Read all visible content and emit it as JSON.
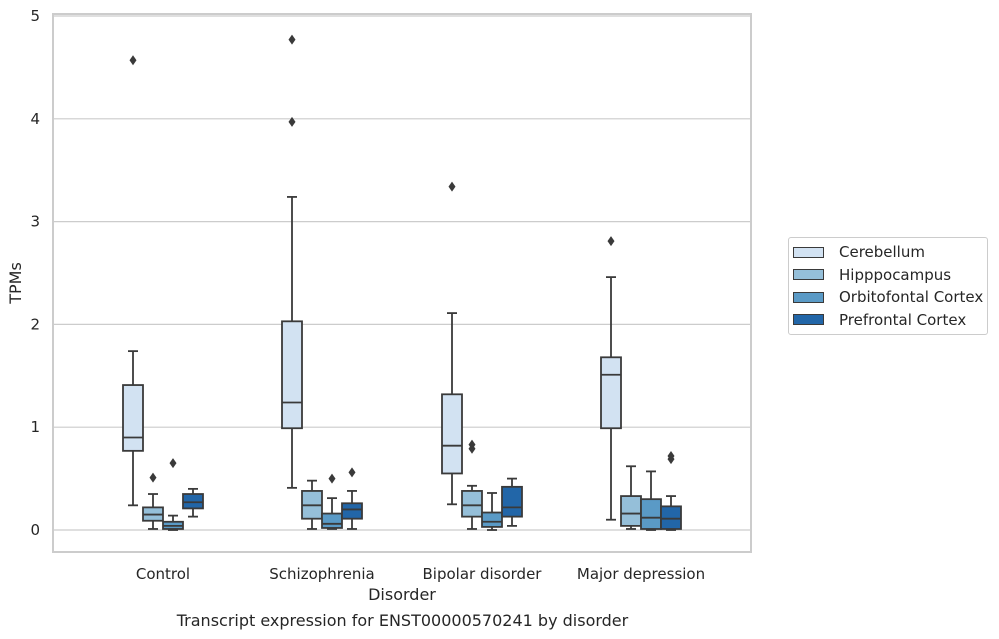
{
  "chart_data": {
    "type": "box",
    "xlabel": "Disorder",
    "ylabel": "TPMs",
    "caption": "Transcript expression for ENST00000570241 by disorder",
    "categories": [
      "Control",
      "Schizophrenia",
      "Bipolar disorder",
      "Major depression"
    ],
    "ylim": [
      -0.22,
      5.0
    ],
    "yticks": [
      0,
      1,
      2,
      3,
      4,
      5
    ],
    "grid": "horizontal",
    "legend_position": "right",
    "series": [
      {
        "name": "Cerebellum",
        "color": "#d2e2f2",
        "boxes": [
          {
            "whislo": 0.24,
            "q1": 0.77,
            "med": 0.9,
            "q3": 1.41,
            "whishi": 1.74,
            "fliers": [
              4.57
            ]
          },
          {
            "whislo": 0.41,
            "q1": 0.99,
            "med": 1.24,
            "q3": 2.03,
            "whishi": 3.24,
            "fliers": [
              3.97,
              4.77
            ]
          },
          {
            "whislo": 0.25,
            "q1": 0.55,
            "med": 0.82,
            "q3": 1.32,
            "whishi": 2.11,
            "fliers": [
              3.34
            ]
          },
          {
            "whislo": 0.1,
            "q1": 0.99,
            "med": 1.51,
            "q3": 1.68,
            "whishi": 2.46,
            "fliers": [
              2.81
            ]
          }
        ]
      },
      {
        "name": "Hipppocampus",
        "color": "#95bfd9",
        "boxes": [
          {
            "whislo": 0.01,
            "q1": 0.09,
            "med": 0.15,
            "q3": 0.22,
            "whishi": 0.35,
            "fliers": [
              0.51
            ]
          },
          {
            "whislo": 0.01,
            "q1": 0.11,
            "med": 0.24,
            "q3": 0.38,
            "whishi": 0.48,
            "fliers": []
          },
          {
            "whislo": 0.01,
            "q1": 0.13,
            "med": 0.24,
            "q3": 0.38,
            "whishi": 0.43,
            "fliers": [
              0.79,
              0.83
            ]
          },
          {
            "whislo": 0.01,
            "q1": 0.04,
            "med": 0.16,
            "q3": 0.33,
            "whishi": 0.62,
            "fliers": []
          }
        ]
      },
      {
        "name": "Orbitofontal Cortex",
        "color": "#5a9ac6",
        "boxes": [
          {
            "whislo": 0.0,
            "q1": 0.01,
            "med": 0.04,
            "q3": 0.08,
            "whishi": 0.14,
            "fliers": [
              0.65
            ]
          },
          {
            "whislo": 0.01,
            "q1": 0.02,
            "med": 0.06,
            "q3": 0.16,
            "whishi": 0.31,
            "fliers": [
              0.5
            ]
          },
          {
            "whislo": 0.0,
            "q1": 0.03,
            "med": 0.08,
            "q3": 0.17,
            "whishi": 0.36,
            "fliers": []
          },
          {
            "whislo": 0.0,
            "q1": 0.01,
            "med": 0.12,
            "q3": 0.3,
            "whishi": 0.57,
            "fliers": []
          }
        ]
      },
      {
        "name": "Prefrontal Cortex",
        "color": "#2266a8",
        "boxes": [
          {
            "whislo": 0.13,
            "q1": 0.21,
            "med": 0.27,
            "q3": 0.35,
            "whishi": 0.4,
            "fliers": []
          },
          {
            "whislo": 0.01,
            "q1": 0.11,
            "med": 0.2,
            "q3": 0.26,
            "whishi": 0.38,
            "fliers": [
              0.56
            ]
          },
          {
            "whislo": 0.04,
            "q1": 0.13,
            "med": 0.22,
            "q3": 0.42,
            "whishi": 0.5,
            "fliers": []
          },
          {
            "whislo": 0.0,
            "q1": 0.01,
            "med": 0.11,
            "q3": 0.23,
            "whishi": 0.33,
            "fliers": [
              0.69,
              0.72
            ]
          }
        ]
      }
    ]
  }
}
